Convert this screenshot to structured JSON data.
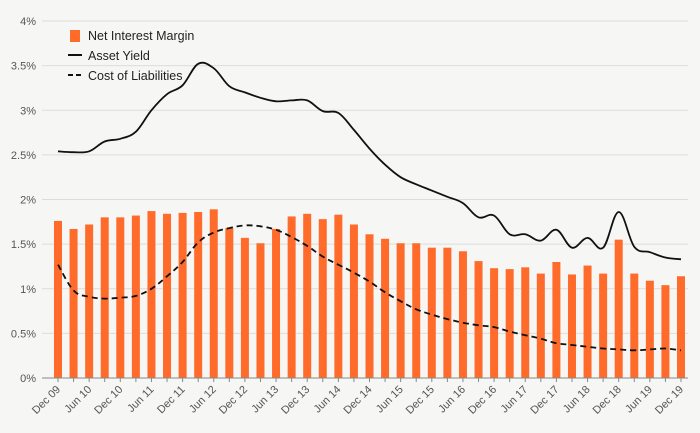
{
  "chart_data": {
    "type": "bar",
    "title": "",
    "xlabel": "",
    "ylabel": "",
    "ylim": [
      0,
      4
    ],
    "y_ticks": [
      0,
      0.5,
      1,
      1.5,
      2,
      2.5,
      3,
      3.5,
      4
    ],
    "y_tick_labels": [
      "0%",
      "0.5%",
      "1%",
      "1.5%",
      "2%",
      "2.5%",
      "3%",
      "3.5%",
      "4%"
    ],
    "grid": "horizontal",
    "legend_position": "top-left",
    "categories": [
      "Dec 09",
      "Mar 10",
      "Jun 10",
      "Sep 10",
      "Dec 10",
      "Mar 11",
      "Jun 11",
      "Sep 11",
      "Dec 11",
      "Mar 12",
      "Jun 12",
      "Sep 12",
      "Dec 12",
      "Mar 13",
      "Jun 13",
      "Sep 13",
      "Dec 13",
      "Mar 14",
      "Jun 14",
      "Sep 14",
      "Dec 14",
      "Mar 15",
      "Jun 15",
      "Sep 15",
      "Dec 15",
      "Mar 16",
      "Jun 16",
      "Sep 16",
      "Dec 16",
      "Mar 17",
      "Jun 17",
      "Sep 17",
      "Dec 17",
      "Mar 18",
      "Jun 18",
      "Sep 18",
      "Dec 18",
      "Mar 19",
      "Jun 19",
      "Sep 19",
      "Dec 19"
    ],
    "x_tick_labels": [
      "Dec 09",
      "Jun 10",
      "Dec 10",
      "Jun 11",
      "Dec 11",
      "Jun 12",
      "Dec 12",
      "Jun 13",
      "Dec 13",
      "Jun 14",
      "Dec 14",
      "Jun 15",
      "Dec 15",
      "Jun 16",
      "Dec 16",
      "Jun 17",
      "Dec 17",
      "Jun 18",
      "Dec 18",
      "Jun 19",
      "Dec 19"
    ],
    "series": [
      {
        "name": "Net Interest Margin",
        "kind": "bar",
        "color": "#ff6b2b",
        "values": [
          1.76,
          1.67,
          1.72,
          1.8,
          1.8,
          1.82,
          1.87,
          1.84,
          1.85,
          1.86,
          1.89,
          1.68,
          1.57,
          1.51,
          1.67,
          1.81,
          1.84,
          1.78,
          1.83,
          1.72,
          1.61,
          1.56,
          1.51,
          1.51,
          1.46,
          1.46,
          1.42,
          1.31,
          1.23,
          1.22,
          1.24,
          1.17,
          1.3,
          1.16,
          1.26,
          1.17,
          1.55,
          1.17,
          1.09,
          1.04,
          1.14
        ]
      },
      {
        "name": "Asset Yield",
        "kind": "line",
        "color": "#111111",
        "dash": "solid",
        "values": [
          2.54,
          2.53,
          2.54,
          2.65,
          2.68,
          2.76,
          3.0,
          3.18,
          3.28,
          3.52,
          3.47,
          3.27,
          3.2,
          3.14,
          3.1,
          3.11,
          3.11,
          2.99,
          2.97,
          2.78,
          2.57,
          2.39,
          2.25,
          2.17,
          2.1,
          2.03,
          1.96,
          1.8,
          1.82,
          1.61,
          1.61,
          1.54,
          1.66,
          1.46,
          1.57,
          1.46,
          1.86,
          1.47,
          1.41,
          1.35,
          1.33
        ]
      },
      {
        "name": "Cost of Liabilities",
        "kind": "line",
        "color": "#111111",
        "dash": "dashed",
        "values": [
          1.27,
          0.98,
          0.91,
          0.89,
          0.9,
          0.92,
          1.0,
          1.14,
          1.3,
          1.52,
          1.63,
          1.68,
          1.71,
          1.7,
          1.66,
          1.58,
          1.48,
          1.36,
          1.27,
          1.18,
          1.08,
          0.96,
          0.86,
          0.77,
          0.71,
          0.66,
          0.62,
          0.59,
          0.57,
          0.52,
          0.48,
          0.44,
          0.39,
          0.37,
          0.35,
          0.33,
          0.32,
          0.31,
          0.32,
          0.33,
          0.31
        ]
      }
    ]
  }
}
